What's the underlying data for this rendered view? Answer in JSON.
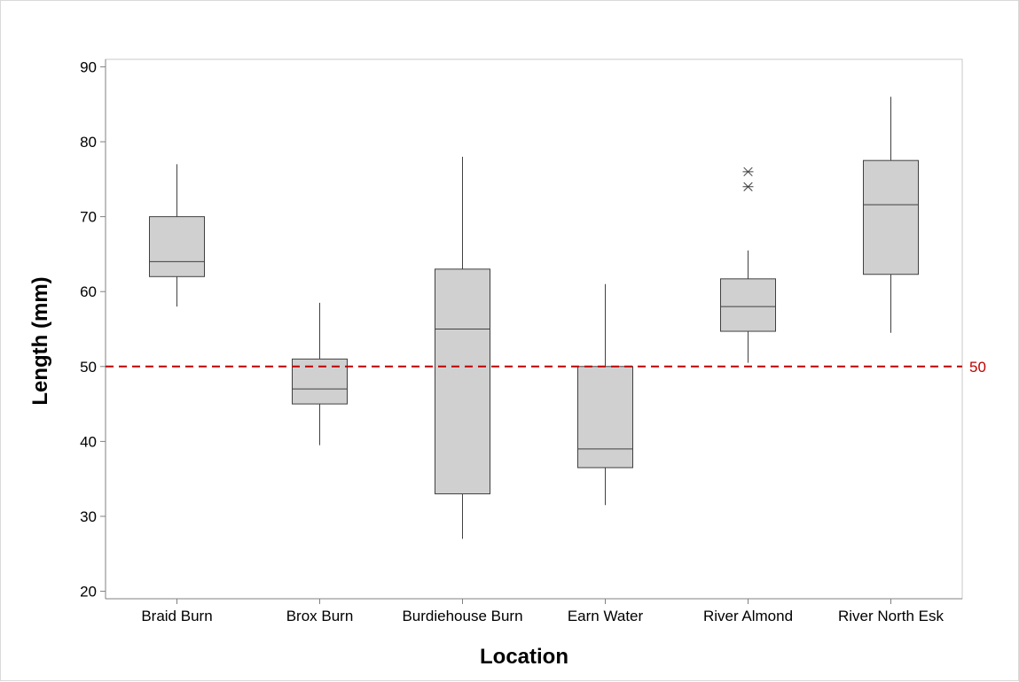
{
  "chart_data": {
    "type": "box",
    "xlabel": "Location",
    "ylabel": "Length (mm)",
    "ylim": [
      19,
      91
    ],
    "yticks": [
      20,
      30,
      40,
      50,
      60,
      70,
      80,
      90
    ],
    "categories": [
      "Braid Burn",
      "Brox Burn",
      "Burdiehouse Burn",
      "Earn Water",
      "River Almond",
      "River North Esk"
    ],
    "boxes": [
      {
        "name": "Braid Burn",
        "whisker_low": 58,
        "q1": 62,
        "median": 64,
        "q3": 70,
        "whisker_high": 77,
        "outliers": []
      },
      {
        "name": "Brox Burn",
        "whisker_low": 39.5,
        "q1": 45,
        "median": 47,
        "q3": 51,
        "whisker_high": 58.5,
        "outliers": []
      },
      {
        "name": "Burdiehouse Burn",
        "whisker_low": 27,
        "q1": 33,
        "median": 55,
        "q3": 63,
        "whisker_high": 78,
        "outliers": []
      },
      {
        "name": "Earn Water",
        "whisker_low": 31.5,
        "q1": 36.5,
        "median": 39,
        "q3": 50,
        "whisker_high": 61,
        "outliers": []
      },
      {
        "name": "River Almond",
        "whisker_low": 50.5,
        "q1": 54.7,
        "median": 58,
        "q3": 61.7,
        "whisker_high": 65.5,
        "outliers": [
          74,
          76
        ]
      },
      {
        "name": "River North Esk",
        "whisker_low": 54.5,
        "q1": 62.3,
        "median": 71.6,
        "q3": 77.5,
        "whisker_high": 86,
        "outliers": []
      }
    ],
    "reference_line": {
      "value": 50,
      "label": "50",
      "color": "#c00000",
      "style": "dashed"
    },
    "box_fill": "#d0d0d0",
    "line_color": "#404040",
    "grid": false
  }
}
